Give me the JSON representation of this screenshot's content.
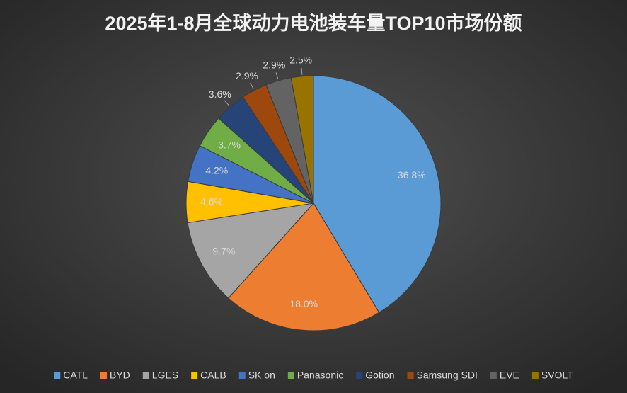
{
  "chart_data": {
    "type": "pie",
    "title": "2025年1-8月全球动力电池装车量TOP10市场份额",
    "categories": [
      "CATL",
      "BYD",
      "LGES",
      "CALB",
      "SK on",
      "Panasonic",
      "Gotion",
      "Samsung SDI",
      "EVE",
      "SVOLT"
    ],
    "values": [
      36.8,
      18.0,
      9.7,
      4.6,
      4.2,
      3.7,
      3.6,
      2.9,
      2.9,
      2.5
    ],
    "value_labels": [
      "36.8%",
      "18.0%",
      "9.7%",
      "4.6%",
      "4.2%",
      "3.7%",
      "3.6%",
      "2.9%",
      "2.9%",
      "2.5%"
    ],
    "colors": [
      "#5b9bd5",
      "#ed7d31",
      "#a5a5a5",
      "#ffc000",
      "#4472c4",
      "#70ad47",
      "#264478",
      "#9e480e",
      "#636363",
      "#997300"
    ],
    "legend": "bottom"
  }
}
